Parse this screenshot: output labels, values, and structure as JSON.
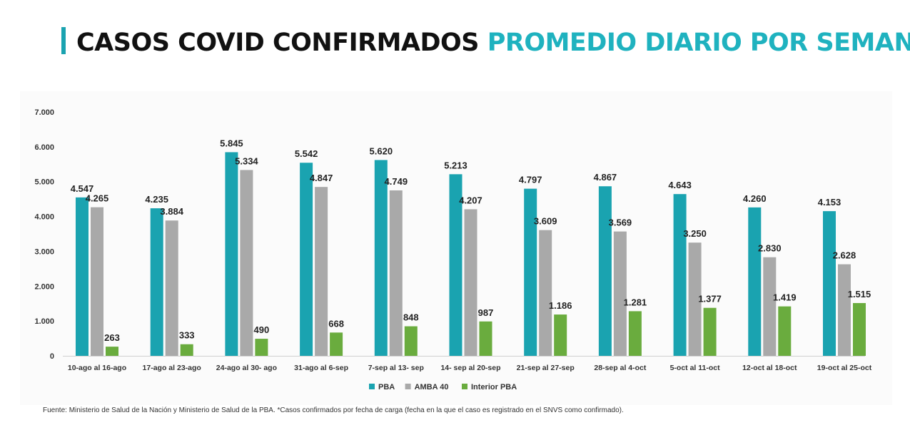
{
  "header": {
    "title_main": "CASOS COVID CONFIRMADOS",
    "title_accent": "PROMEDIO DIARIO POR SEMANA"
  },
  "footer": {
    "source": "Fuente: Ministerio de Salud de la Nación y Ministerio de Salud de la PBA. *Casos confirmados por fecha de carga (fecha en la que el caso es registrado en el SNVS como confirmado)."
  },
  "chart_data": {
    "type": "bar",
    "title": "",
    "xlabel": "",
    "ylabel": "",
    "ylim": [
      0,
      7000
    ],
    "yticks": [
      {
        "value": 0,
        "label": "0"
      },
      {
        "value": 1000,
        "label": "1.000"
      },
      {
        "value": 2000,
        "label": "2.000"
      },
      {
        "value": 3000,
        "label": "3.000"
      },
      {
        "value": 4000,
        "label": "4.000"
      },
      {
        "value": 5000,
        "label": "5.000"
      },
      {
        "value": 6000,
        "label": "6.000"
      },
      {
        "value": 7000,
        "label": "7.000"
      }
    ],
    "grid": false,
    "legend_position": "bottom",
    "categories": [
      "10-ago al 16-ago",
      "17-ago al 23-ago",
      "24-ago al 30- ago",
      "31-ago al 6-sep",
      "7-sep al 13- sep",
      "14- sep al 20-sep",
      "21-sep al 27-sep",
      "28-sep al 4-oct",
      "5-oct al 11-oct",
      "12-oct al 18-oct",
      "19-oct al 25-oct"
    ],
    "series": [
      {
        "name": "PBA",
        "color": "#1aa3b0",
        "values": [
          4547,
          4235,
          5845,
          5542,
          5620,
          5213,
          4797,
          4867,
          4643,
          4260,
          4153
        ],
        "labels": [
          "4.547",
          "4.235",
          "5.845",
          "5.542",
          "5.620",
          "5.213",
          "4.797",
          "4.867",
          "4.643",
          "4.260",
          "4.153"
        ]
      },
      {
        "name": "AMBA 40",
        "color": "#a9a9a9",
        "values": [
          4265,
          3884,
          5334,
          4847,
          4749,
          4207,
          3609,
          3569,
          3250,
          2830,
          2628
        ],
        "labels": [
          "4.265",
          "3.884",
          "5.334",
          "4.847",
          "4.749",
          "4.207",
          "3.609",
          "3.569",
          "3.250",
          "2.830",
          "2.628"
        ]
      },
      {
        "name": "Interior PBA",
        "color": "#6aac3e",
        "values": [
          263,
          333,
          490,
          668,
          848,
          987,
          1186,
          1281,
          1377,
          1419,
          1515
        ],
        "labels": [
          "263",
          "333",
          "490",
          "668",
          "848",
          "987",
          "1.186",
          "1.281",
          "1.377",
          "1.419",
          "1.515"
        ]
      }
    ]
  }
}
